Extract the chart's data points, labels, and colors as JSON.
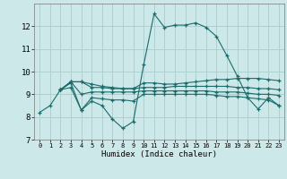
{
  "background_color": "#cce8e8",
  "grid_color": "#aacccc",
  "line_color": "#1a6b6b",
  "marker": "+",
  "xlabel": "Humidex (Indice chaleur)",
  "ylabel": "",
  "xlim": [
    -0.5,
    23.5
  ],
  "ylim": [
    7,
    13
  ],
  "yticks": [
    7,
    8,
    9,
    10,
    11,
    12
  ],
  "xticks": [
    0,
    1,
    2,
    3,
    4,
    5,
    6,
    7,
    8,
    9,
    10,
    11,
    12,
    13,
    14,
    15,
    16,
    17,
    18,
    19,
    20,
    21,
    22,
    23
  ],
  "lines": [
    {
      "x": [
        0,
        1,
        2,
        3,
        4,
        5,
        6,
        7,
        8,
        9,
        10,
        11,
        12,
        13,
        14,
        15,
        16,
        17,
        18,
        19,
        20,
        21,
        22,
        23
      ],
      "y": [
        8.2,
        8.5,
        9.2,
        9.5,
        8.3,
        8.7,
        8.5,
        7.9,
        7.5,
        7.8,
        10.3,
        12.55,
        11.95,
        12.05,
        12.05,
        12.15,
        11.95,
        11.55,
        10.7,
        9.8,
        8.85,
        8.35,
        8.85,
        8.5
      ]
    },
    {
      "x": [
        2,
        3,
        4,
        5,
        6,
        7,
        8,
        9,
        10,
        11,
        12,
        13,
        14,
        15,
        16,
        17,
        18,
        19,
        20,
        21,
        22,
        23
      ],
      "y": [
        9.2,
        9.55,
        9.55,
        9.45,
        9.35,
        9.3,
        9.25,
        9.25,
        9.5,
        9.5,
        9.45,
        9.45,
        9.5,
        9.55,
        9.6,
        9.65,
        9.65,
        9.7,
        9.7,
        9.7,
        9.65,
        9.6
      ]
    },
    {
      "x": [
        2,
        3,
        4,
        5,
        6,
        7,
        8,
        9,
        10,
        11,
        12,
        13,
        14,
        15,
        16,
        17,
        18,
        19,
        20,
        21,
        22,
        23
      ],
      "y": [
        9.2,
        9.55,
        9.55,
        9.3,
        9.3,
        9.25,
        9.25,
        9.25,
        9.3,
        9.3,
        9.3,
        9.35,
        9.35,
        9.35,
        9.35,
        9.35,
        9.35,
        9.3,
        9.3,
        9.25,
        9.25,
        9.2
      ]
    },
    {
      "x": [
        2,
        3,
        4,
        5,
        6,
        7,
        8,
        9,
        10,
        11,
        12,
        13,
        14,
        15,
        16,
        17,
        18,
        19,
        20,
        21,
        22,
        23
      ],
      "y": [
        9.2,
        9.55,
        9.0,
        9.1,
        9.1,
        9.1,
        9.1,
        9.1,
        9.15,
        9.15,
        9.15,
        9.15,
        9.15,
        9.15,
        9.15,
        9.1,
        9.1,
        9.1,
        9.05,
        9.0,
        9.0,
        8.95
      ]
    },
    {
      "x": [
        2,
        3,
        4,
        5,
        6,
        7,
        8,
        9,
        10,
        11,
        12,
        13,
        14,
        15,
        16,
        17,
        18,
        19,
        20,
        21,
        22,
        23
      ],
      "y": [
        9.2,
        9.3,
        8.3,
        8.85,
        8.8,
        8.75,
        8.75,
        8.7,
        9.0,
        9.0,
        9.0,
        9.0,
        9.0,
        9.0,
        9.0,
        8.95,
        8.9,
        8.9,
        8.85,
        8.8,
        8.75,
        8.5
      ]
    }
  ]
}
